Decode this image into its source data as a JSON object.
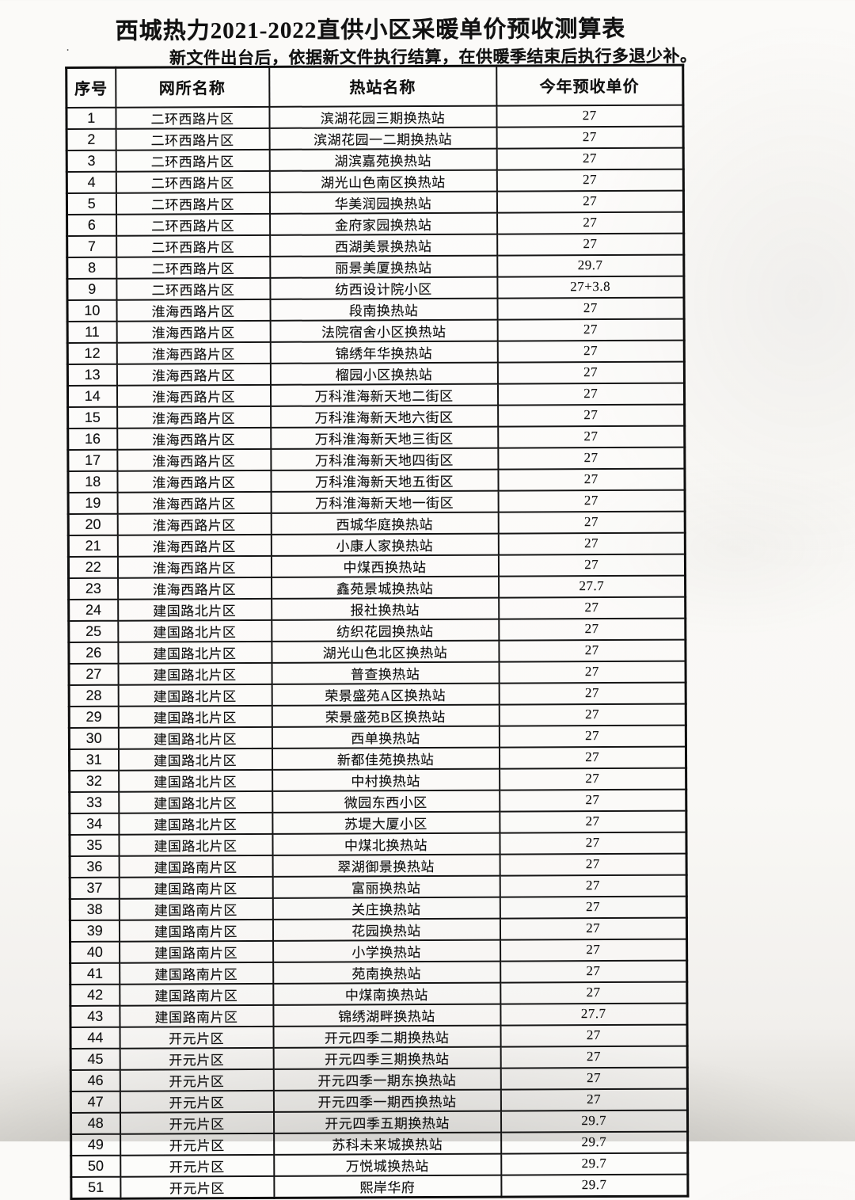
{
  "document": {
    "title": "西城热力2021-2022直供小区采暖单价预收测算表",
    "subtitle": "新文件出台后，依据新文件执行结算，在供暖季结束后执行多退少补。",
    "corner_mark": "·"
  },
  "table": {
    "headers": [
      "序号",
      "网所名称",
      "热站名称",
      "今年预收单价"
    ],
    "rows": [
      [
        "1",
        "二环西路片区",
        "滨湖花园三期换热站",
        "27"
      ],
      [
        "2",
        "二环西路片区",
        "滨湖花园一二期换热站",
        "27"
      ],
      [
        "3",
        "二环西路片区",
        "湖滨嘉苑换热站",
        "27"
      ],
      [
        "4",
        "二环西路片区",
        "湖光山色南区换热站",
        "27"
      ],
      [
        "5",
        "二环西路片区",
        "华美润园换热站",
        "27"
      ],
      [
        "6",
        "二环西路片区",
        "金府家园换热站",
        "27"
      ],
      [
        "7",
        "二环西路片区",
        "西湖美景换热站",
        "27"
      ],
      [
        "8",
        "二环西路片区",
        "丽景美厦换热站",
        "29.7"
      ],
      [
        "9",
        "二环西路片区",
        "纺西设计院小区",
        "27+3.8"
      ],
      [
        "10",
        "淮海西路片区",
        "段南换热站",
        "27"
      ],
      [
        "11",
        "淮海西路片区",
        "法院宿舍小区换热站",
        "27"
      ],
      [
        "12",
        "淮海西路片区",
        "锦绣年华换热站",
        "27"
      ],
      [
        "13",
        "淮海西路片区",
        "榴园小区换热站",
        "27"
      ],
      [
        "14",
        "淮海西路片区",
        "万科淮海新天地二街区",
        "27"
      ],
      [
        "15",
        "淮海西路片区",
        "万科淮海新天地六街区",
        "27"
      ],
      [
        "16",
        "淮海西路片区",
        "万科淮海新天地三街区",
        "27"
      ],
      [
        "17",
        "淮海西路片区",
        "万科淮海新天地四街区",
        "27"
      ],
      [
        "18",
        "淮海西路片区",
        "万科淮海新天地五街区",
        "27"
      ],
      [
        "19",
        "淮海西路片区",
        "万科淮海新天地一街区",
        "27"
      ],
      [
        "20",
        "淮海西路片区",
        "西城华庭换热站",
        "27"
      ],
      [
        "21",
        "淮海西路片区",
        "小康人家换热站",
        "27"
      ],
      [
        "22",
        "淮海西路片区",
        "中煤西换热站",
        "27"
      ],
      [
        "23",
        "淮海西路片区",
        "鑫苑景城换热站",
        "27.7"
      ],
      [
        "24",
        "建国路北片区",
        "报社换热站",
        "27"
      ],
      [
        "25",
        "建国路北片区",
        "纺织花园换热站",
        "27"
      ],
      [
        "26",
        "建国路北片区",
        "湖光山色北区换热站",
        "27"
      ],
      [
        "27",
        "建国路北片区",
        "普查换热站",
        "27"
      ],
      [
        "28",
        "建国路北片区",
        "荣景盛苑A区换热站",
        "27"
      ],
      [
        "29",
        "建国路北片区",
        "荣景盛苑B区换热站",
        "27"
      ],
      [
        "30",
        "建国路北片区",
        "西单换热站",
        "27"
      ],
      [
        "31",
        "建国路北片区",
        "新都佳苑换热站",
        "27"
      ],
      [
        "32",
        "建国路北片区",
        "中村换热站",
        "27"
      ],
      [
        "33",
        "建国路北片区",
        "微园东西小区",
        "27"
      ],
      [
        "34",
        "建国路北片区",
        "苏堤大厦小区",
        "27"
      ],
      [
        "35",
        "建国路北片区",
        "中煤北换热站",
        "27"
      ],
      [
        "36",
        "建国路南片区",
        "翠湖御景换热站",
        "27"
      ],
      [
        "37",
        "建国路南片区",
        "富丽换热站",
        "27"
      ],
      [
        "38",
        "建国路南片区",
        "关庄换热站",
        "27"
      ],
      [
        "39",
        "建国路南片区",
        "花园换热站",
        "27"
      ],
      [
        "40",
        "建国路南片区",
        "小学换热站",
        "27"
      ],
      [
        "41",
        "建国路南片区",
        "苑南换热站",
        "27"
      ],
      [
        "42",
        "建国路南片区",
        "中煤南换热站",
        "27"
      ],
      [
        "43",
        "建国路南片区",
        "锦绣湖畔换热站",
        "27.7"
      ],
      [
        "44",
        "开元片区",
        "开元四季二期换热站",
        "27"
      ],
      [
        "45",
        "开元片区",
        "开元四季三期换热站",
        "27"
      ],
      [
        "46",
        "开元片区",
        "开元四季一期东换热站",
        "27"
      ],
      [
        "47",
        "开元片区",
        "开元四季一期西换热站",
        "27"
      ],
      [
        "48",
        "开元片区",
        "开元四季五期换热站",
        "29.7"
      ],
      [
        "49",
        "开元片区",
        "苏科未来城换热站",
        "29.7"
      ],
      [
        "50",
        "开元片区",
        "万悦城换热站",
        "29.7"
      ],
      [
        "51",
        "开元片区",
        "熙岸华府",
        "29.7"
      ]
    ]
  }
}
